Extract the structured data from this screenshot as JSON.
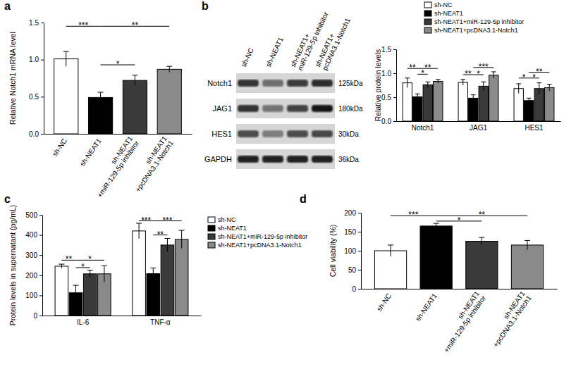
{
  "chart_data": [
    {
      "type": "bar",
      "title": "a",
      "y_label": "Relative Notch1 mRNA level",
      "categories": [
        "sh-NC",
        "sh-NEAT1",
        "sh-NEAT1\n+miR-129-5p inhibitor",
        "sh-NEAT1\n+pcDNA3.1-Notch1"
      ],
      "values": [
        1.01,
        0.49,
        0.72,
        0.87
      ],
      "errors": [
        0.1,
        0.07,
        0.07,
        0.04
      ],
      "colors": [
        "#ffffff",
        "#000000",
        "#3a3a3a",
        "#8a8a8a"
      ],
      "ylim": [
        0,
        1.5
      ],
      "yticks": [
        {
          "value": 0,
          "label": "0.0"
        },
        0.5,
        {
          "value": 1,
          "label": "1.0"
        },
        1.5
      ],
      "annotations": [
        {
          "from": 0,
          "to": 1,
          "y": 1.45,
          "text": "***"
        },
        {
          "from": 1,
          "to": 3,
          "y": 1.45,
          "text": "**"
        },
        {
          "from": 1,
          "to": 2,
          "y": 0.93,
          "text": "*"
        }
      ]
    },
    {
      "type": "bar",
      "title": "b",
      "y_label": "Relative protein levels",
      "categories": [
        "Notch1",
        "JAG1",
        "HES1"
      ],
      "legend": "top",
      "series": [
        {
          "name": "sh-NC",
          "color": "#ffffff",
          "values": [
            0.8,
            0.81,
            0.68
          ],
          "errors": [
            0.1,
            0.06,
            0.1
          ]
        },
        {
          "name": "sh-NEAT1",
          "color": "#000000",
          "values": [
            0.51,
            0.48,
            0.43
          ],
          "errors": [
            0.06,
            0.07,
            0.05
          ]
        },
        {
          "name": "sh-NEAT1+miR-129-5p inhibitor",
          "color": "#3a3a3a",
          "values": [
            0.76,
            0.73,
            0.68
          ],
          "errors": [
            0.06,
            0.09,
            0.12
          ]
        },
        {
          "name": "sh-NEAT1+pcDNA3.1-Notch1",
          "color": "#8a8a8a",
          "values": [
            0.83,
            0.96,
            0.7
          ],
          "errors": [
            0.04,
            0.07,
            0.07
          ]
        }
      ],
      "ylim": [
        0,
        1.5
      ],
      "yticks": [
        {
          "value": 0,
          "label": "0.0"
        },
        0.5,
        {
          "value": 1,
          "label": "1.0"
        },
        1.5
      ],
      "annotations": [
        {
          "group": 0,
          "from": 0,
          "to": 1,
          "y": 1.1,
          "text": "**"
        },
        {
          "group": 0,
          "from": 1,
          "to": 3,
          "y": 1.1,
          "text": "**"
        },
        {
          "group": 0,
          "from": 1,
          "to": 2,
          "y": 0.98,
          "text": "*"
        },
        {
          "group": 1,
          "from": 0,
          "to": 1,
          "y": 0.97,
          "text": "**"
        },
        {
          "group": 1,
          "from": 1,
          "to": 2,
          "y": 0.97,
          "text": "*"
        },
        {
          "group": 1,
          "from": 1,
          "to": 3,
          "y": 1.12,
          "text": "***"
        },
        {
          "group": 2,
          "from": 0,
          "to": 1,
          "y": 0.9,
          "text": "*"
        },
        {
          "group": 2,
          "from": 1,
          "to": 2,
          "y": 0.9,
          "text": "*"
        },
        {
          "group": 2,
          "from": 1,
          "to": 3,
          "y": 1.02,
          "text": "**"
        }
      ]
    },
    {
      "type": "bar",
      "title": "c",
      "y_label": "Protein levels in supernatant (pg/mL)",
      "categories": [
        "IL-6",
        "TNF-α"
      ],
      "legend": "right",
      "series": [
        {
          "name": "sh-NC",
          "color": "#ffffff",
          "values": [
            245,
            420
          ],
          "errors": [
            10,
            38
          ]
        },
        {
          "name": "sh-NEAT1",
          "color": "#000000",
          "values": [
            113,
            208
          ],
          "errors": [
            37,
            28
          ]
        },
        {
          "name": "sh-NEAT1+miR-129-5p inhibitor",
          "color": "#3a3a3a",
          "values": [
            207,
            350
          ],
          "errors": [
            18,
            33
          ]
        },
        {
          "name": "sh-NEAT1+pcDNA3.1-Notch1",
          "color": "#8a8a8a",
          "values": [
            207,
            378
          ],
          "errors": [
            40,
            45
          ]
        }
      ],
      "ylim": [
        0,
        500
      ],
      "yticks": [
        0,
        100,
        200,
        300,
        400,
        500
      ],
      "annotations": [
        {
          "group": 0,
          "from": 0,
          "to": 1,
          "y": 275,
          "text": "**"
        },
        {
          "group": 0,
          "from": 1,
          "to": 2,
          "y": 238,
          "text": "*"
        },
        {
          "group": 0,
          "from": 1,
          "to": 3,
          "y": 275,
          "text": "*"
        },
        {
          "group": 1,
          "from": 0,
          "to": 1,
          "y": 470,
          "text": "***"
        },
        {
          "group": 1,
          "from": 1,
          "to": 2,
          "y": 400,
          "text": "**"
        },
        {
          "group": 1,
          "from": 1,
          "to": 3,
          "y": 470,
          "text": "***"
        }
      ]
    },
    {
      "type": "bar",
      "title": "d",
      "y_label": "Cell viability (%)",
      "categories": [
        "sh-NC",
        "sh-NEAT1",
        "sh-NEAT1\n+miR-129-5p inhibitor",
        "sh-NEAT1\n+pcDNA3.1-Notch1"
      ],
      "values": [
        100,
        165,
        125,
        115
      ],
      "errors": [
        15,
        7,
        10,
        12
      ],
      "colors": [
        "#ffffff",
        "#000000",
        "#3a3a3a",
        "#8a8a8a"
      ],
      "ylim": [
        0,
        200
      ],
      "yticks": [
        0,
        50,
        100,
        150,
        200
      ],
      "annotations": [
        {
          "from": 0,
          "to": 1,
          "y": 192,
          "text": "***"
        },
        {
          "from": 1,
          "to": 3,
          "y": 192,
          "text": "**"
        },
        {
          "from": 1,
          "to": 2,
          "y": 178,
          "text": "*"
        }
      ]
    }
  ],
  "blot": {
    "lanes": [
      "sh-NC",
      "sh-NEAT1",
      "sh-NEAT1+\nmiR-129-5p inhibitor",
      "sh-NEAT1+\npcDNA3.1-Notch1"
    ],
    "rows": [
      {
        "label": "Notch1",
        "size": "125kDa"
      },
      {
        "label": "JAG1",
        "size": "180kDa"
      },
      {
        "label": "HES1",
        "size": "30kDa"
      },
      {
        "label": "GAPDH",
        "size": "36kDa"
      }
    ]
  }
}
